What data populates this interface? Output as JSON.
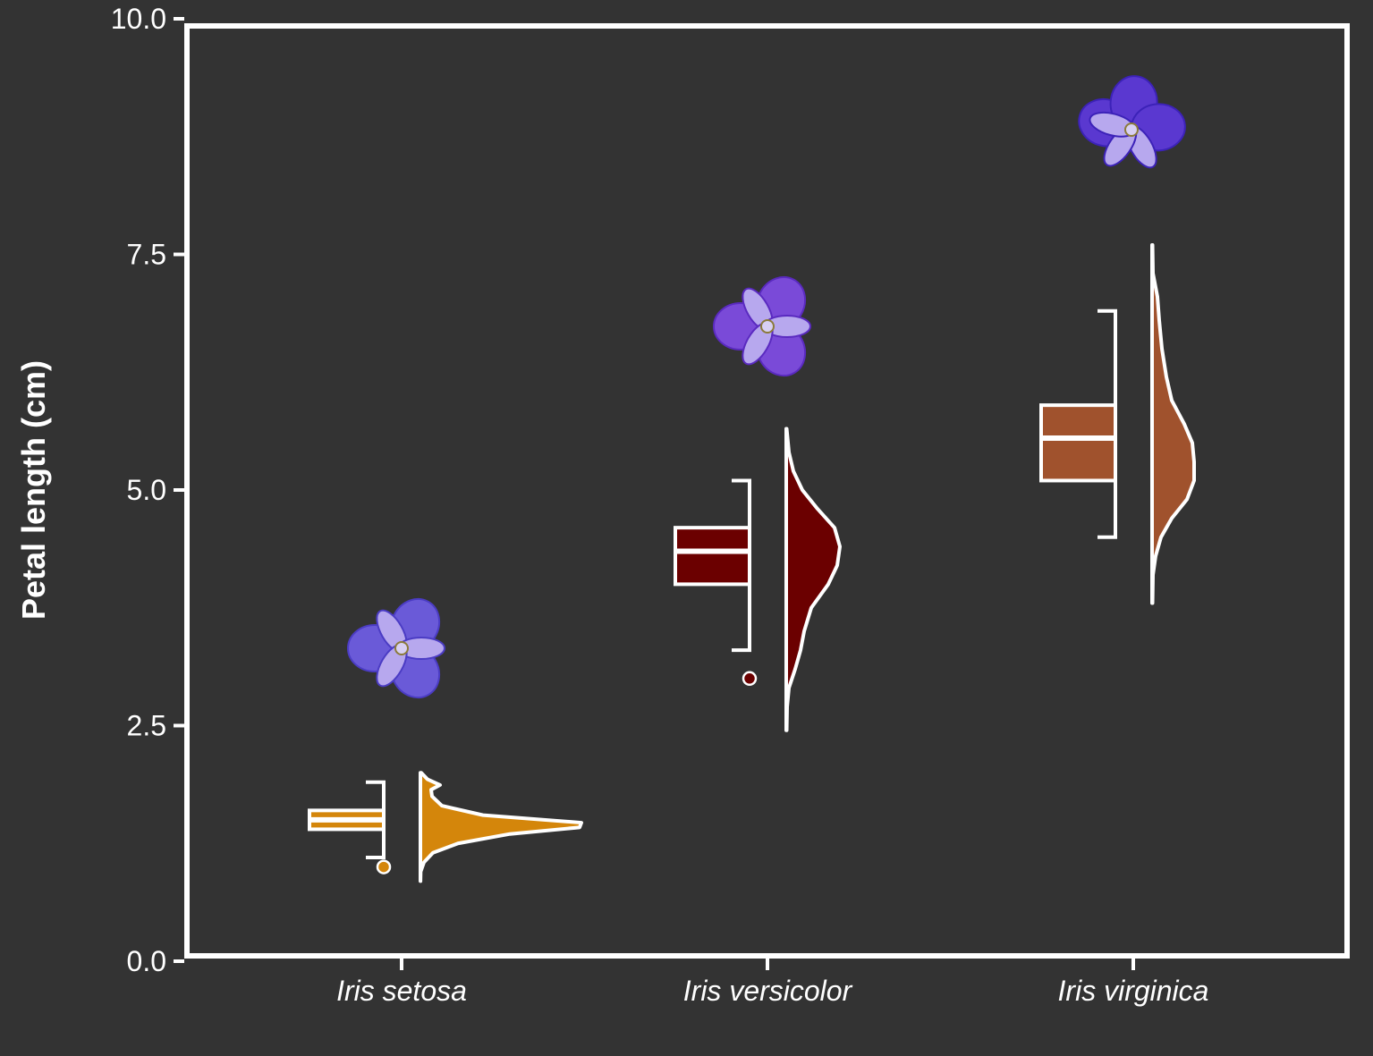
{
  "chart_data": {
    "type": "raincloud",
    "title": "",
    "xlabel": "",
    "ylabel": "Petal length (cm)",
    "ylim": [
      0,
      10
    ],
    "yticks": [
      "0.0",
      "2.5",
      "5.0",
      "7.5",
      "10.0"
    ],
    "grid": false,
    "legend": "none",
    "categories": [
      "Iris setosa",
      "Iris versicolor",
      "Iris virginica"
    ],
    "colors": [
      "#D4860B",
      "#6B0000",
      "#A0522D"
    ],
    "series": [
      {
        "category": "Iris setosa",
        "box": {
          "whisker_low": 1.1,
          "q1": 1.4,
          "median": 1.5,
          "q3": 1.6,
          "whisker_high": 1.9
        },
        "outliers": [
          1.0
        ],
        "density_range": [
          0.85,
          2.0
        ],
        "flower_icon": "iris-setosa-flower-icon"
      },
      {
        "category": "Iris versicolor",
        "box": {
          "whisker_low": 3.3,
          "q1": 4.0,
          "median": 4.35,
          "q3": 4.6,
          "whisker_high": 5.1
        },
        "outliers": [
          3.0
        ],
        "density_range": [
          2.45,
          5.65
        ],
        "flower_icon": "iris-versicolor-flower-icon"
      },
      {
        "category": "Iris virginica",
        "box": {
          "whisker_low": 4.5,
          "q1": 5.1,
          "median": 5.55,
          "q3": 5.9,
          "whisker_high": 6.9
        },
        "outliers": [],
        "density_range": [
          3.8,
          7.6
        ],
        "flower_icon": "iris-virginica-flower-icon"
      }
    ]
  }
}
